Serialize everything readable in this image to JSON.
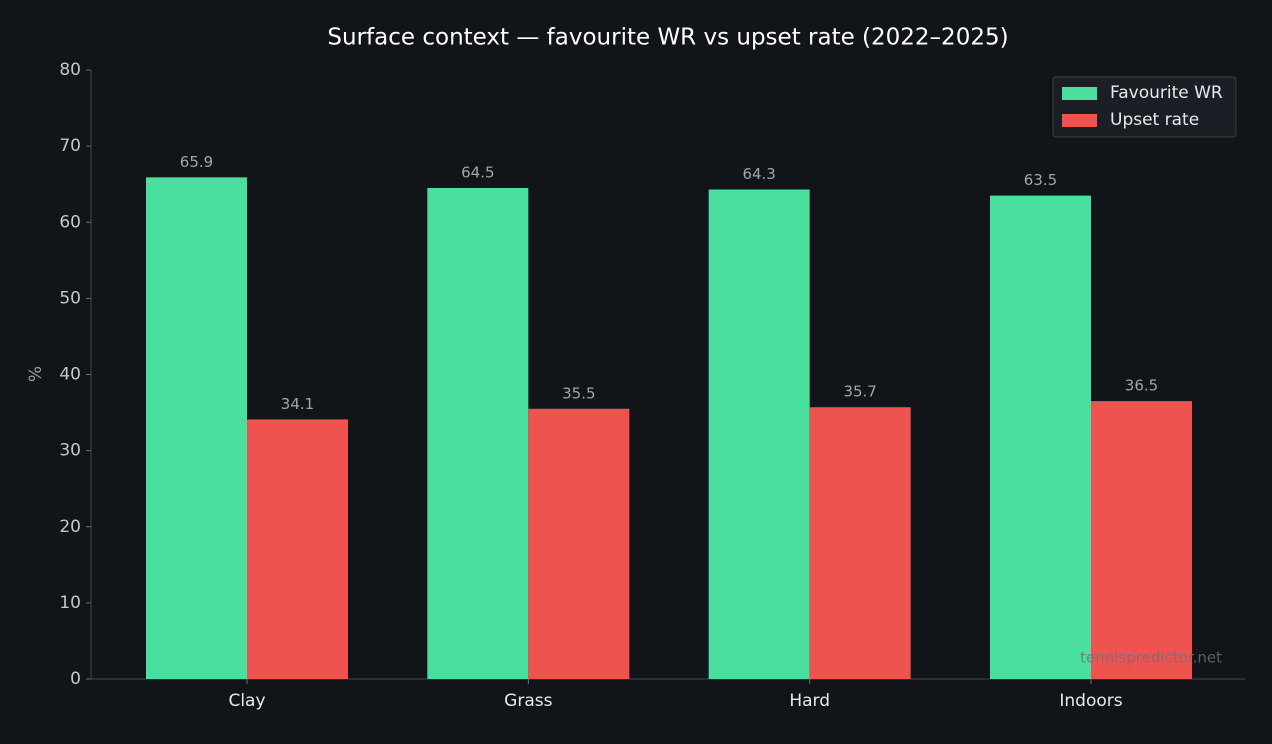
{
  "chart_data": {
    "type": "bar",
    "title": "Surface context — favourite WR vs upset rate (2022–2025)",
    "y_label": "%",
    "categories": [
      "Clay",
      "Grass",
      "Hard",
      "Indoors"
    ],
    "series": [
      {
        "name": "Favourite WR",
        "color": "#4ade9f",
        "values": [
          65.9,
          64.5,
          64.3,
          63.5
        ]
      },
      {
        "name": "Upset rate",
        "color": "#ef5350",
        "values": [
          34.1,
          35.5,
          35.7,
          36.5
        ]
      }
    ],
    "ylim": [
      0,
      80
    ],
    "yticks": [
      0,
      10,
      20,
      30,
      40,
      50,
      60,
      70,
      80
    ],
    "grid": false,
    "legend": "upper right",
    "watermark": "tennispredictor.net"
  }
}
